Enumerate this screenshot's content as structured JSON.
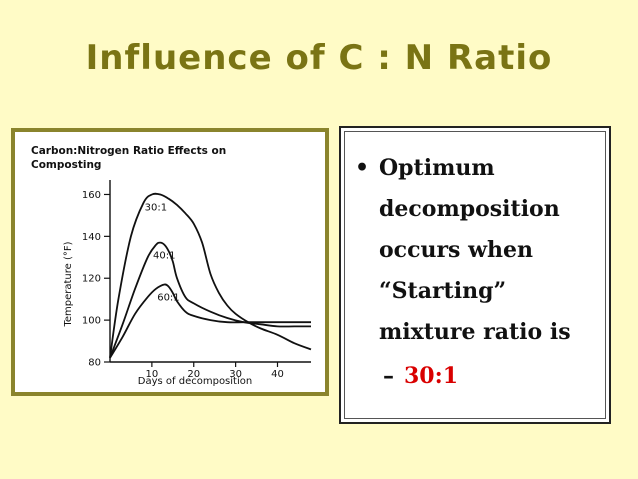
{
  "slide": {
    "title": "Influence of C : N Ratio"
  },
  "bullets": {
    "main_text": "Optimum decomposition occurs when “Starting” mixture ratio is",
    "bullet_symbol": "•",
    "sub_dash": "–",
    "sub_value": "30:1",
    "sub_value_color": "#d90000"
  },
  "chart_data": {
    "type": "line",
    "title": "Carbon:Nitrogen Ratio Effects on Composting",
    "xlabel": "Days of decomposition",
    "ylabel": "Temperature (°F)",
    "xlim": [
      0,
      48
    ],
    "ylim": [
      80,
      165
    ],
    "xticks": [
      10,
      20,
      30,
      40
    ],
    "yticks": [
      80,
      100,
      120,
      140,
      160
    ],
    "xtick_labels": [
      "10",
      "20",
      "30",
      "40"
    ],
    "ytick_labels": [
      "80",
      "100",
      "120",
      "140",
      "160"
    ],
    "grid": false,
    "series": [
      {
        "name": "30:1",
        "x": [
          0,
          2,
          5,
          8,
          10,
          12,
          14,
          16,
          18,
          20,
          22,
          24,
          26,
          28,
          30,
          33,
          36,
          40,
          44,
          48
        ],
        "y": [
          82,
          110,
          140,
          156,
          160,
          160,
          158,
          155,
          151,
          146,
          137,
          122,
          113,
          107,
          103,
          99,
          96,
          93,
          89,
          86
        ]
      },
      {
        "name": "40:1",
        "x": [
          0,
          3,
          6,
          9,
          11,
          12,
          13,
          14,
          15,
          16,
          18,
          20,
          24,
          28,
          32,
          36,
          40,
          44,
          48
        ],
        "y": [
          82,
          98,
          115,
          130,
          136,
          137,
          136,
          133,
          128,
          120,
          111,
          108,
          104,
          101,
          99,
          98,
          97,
          97,
          97
        ]
      },
      {
        "name": "60:1",
        "x": [
          0,
          3,
          6,
          9,
          11,
          13,
          14,
          15,
          16,
          18,
          20,
          24,
          28,
          32,
          36,
          40,
          44,
          48
        ],
        "y": [
          82,
          92,
          103,
          111,
          115,
          117,
          116,
          113,
          109,
          104,
          102,
          100,
          99,
          99,
          99,
          99,
          99,
          99
        ]
      }
    ],
    "line_color": "#111111"
  }
}
